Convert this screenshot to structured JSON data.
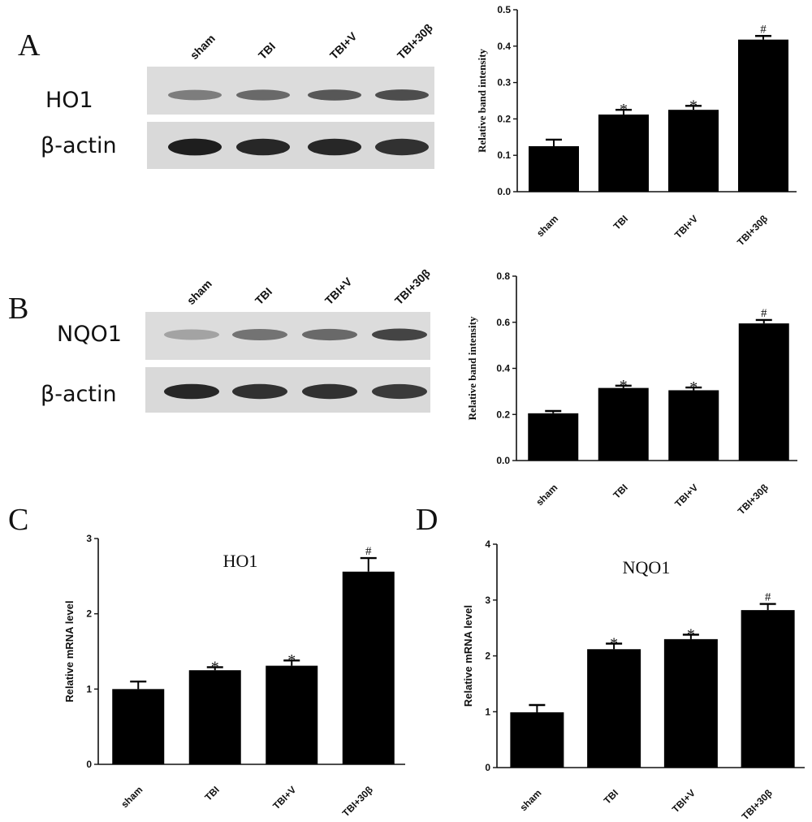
{
  "panels": {
    "A": "A",
    "B": "B",
    "C": "C",
    "D": "D"
  },
  "blots": [
    {
      "lanes": [
        "sham",
        "TBI",
        "TBI+V",
        "TBI+30β"
      ],
      "rows": [
        {
          "label": "HO1",
          "intensity": [
            0.45,
            0.55,
            0.65,
            0.7
          ]
        },
        {
          "label": "β-actin",
          "intensity": [
            0.95,
            0.9,
            0.9,
            0.85
          ]
        }
      ]
    },
    {
      "lanes": [
        "sham",
        "TBI",
        "TBI+V",
        "TBI+30β"
      ],
      "rows": [
        {
          "label": "NQO1",
          "intensity": [
            0.25,
            0.5,
            0.55,
            0.75
          ]
        },
        {
          "label": "β-actin",
          "intensity": [
            0.9,
            0.85,
            0.85,
            0.8
          ]
        }
      ]
    }
  ],
  "chart_data": [
    {
      "type": "bar",
      "categories": [
        "sham",
        "TBI",
        "TBI+V",
        "TBI+30β"
      ],
      "values": [
        0.125,
        0.212,
        0.225,
        0.418
      ],
      "errors": [
        0.018,
        0.013,
        0.011,
        0.01
      ],
      "marks": [
        "",
        "*",
        "*",
        "#"
      ],
      "title": "",
      "xlabel": "",
      "ylabel": "Relative band intensity",
      "ylim": [
        0,
        0.5
      ],
      "yticks": [
        "0.0",
        "0.1",
        "0.2",
        "0.3",
        "0.4",
        "0.5"
      ],
      "tick_values": [
        0,
        0.1,
        0.2,
        0.3,
        0.4,
        0.5
      ]
    },
    {
      "type": "bar",
      "categories": [
        "sham",
        "TBI",
        "TBI+V",
        "TBI+30β"
      ],
      "values": [
        0.205,
        0.315,
        0.305,
        0.595
      ],
      "errors": [
        0.01,
        0.01,
        0.012,
        0.015
      ],
      "marks": [
        "",
        "*",
        "*",
        "#"
      ],
      "title": "",
      "xlabel": "",
      "ylabel": "Relative band intensity",
      "ylim": [
        0,
        0.8
      ],
      "yticks": [
        "0.0",
        "0.2",
        "0.4",
        "0.6",
        "0.8"
      ],
      "tick_values": [
        0,
        0.2,
        0.4,
        0.6,
        0.8
      ]
    },
    {
      "type": "bar",
      "categories": [
        "sham",
        "TBI",
        "TBI+V",
        "TBI+30β"
      ],
      "values": [
        1.0,
        1.25,
        1.31,
        2.56
      ],
      "errors": [
        0.1,
        0.04,
        0.07,
        0.18
      ],
      "marks": [
        "",
        "*",
        "*",
        "#"
      ],
      "title": "HO1",
      "xlabel": "",
      "ylabel": "Relative mRNA level",
      "ylim": [
        0,
        3
      ],
      "yticks": [
        "0",
        "1",
        "2",
        "3"
      ],
      "tick_values": [
        0,
        1,
        2,
        3
      ]
    },
    {
      "type": "bar",
      "categories": [
        "sham",
        "TBI",
        "TBI+V",
        "TBI+30β"
      ],
      "values": [
        0.99,
        2.12,
        2.3,
        2.82
      ],
      "errors": [
        0.13,
        0.1,
        0.08,
        0.11
      ],
      "marks": [
        "",
        "*",
        "*",
        "#"
      ],
      "title": "NQO1",
      "xlabel": "",
      "ylabel": "Relative mRNA level",
      "ylim": [
        0,
        4
      ],
      "yticks": [
        "0",
        "1",
        "2",
        "3",
        "4"
      ],
      "tick_values": [
        0,
        1,
        2,
        3,
        4
      ]
    }
  ]
}
